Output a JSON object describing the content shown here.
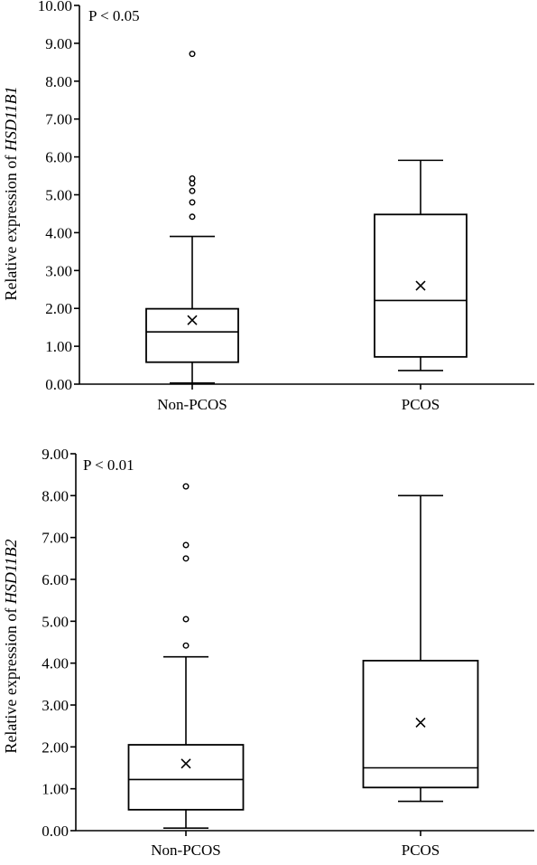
{
  "chart_data": [
    {
      "type": "box",
      "annotation": "P < 0.05",
      "ylabel": {
        "prefix": "Relative expression of ",
        "gene": "HSD11B1"
      },
      "ylim": [
        0,
        10
      ],
      "yticks": [
        "0.00",
        "1.00",
        "2.00",
        "3.00",
        "4.00",
        "5.00",
        "6.00",
        "7.00",
        "8.00",
        "9.00",
        "10.00"
      ],
      "categories": [
        "Non-PCOS",
        "PCOS"
      ],
      "boxes": [
        {
          "category": "Non-PCOS",
          "whisker_low": 0.03,
          "q1": 0.58,
          "median": 1.38,
          "q3": 1.99,
          "whisker_high": 3.9,
          "mean": 1.69,
          "outliers": [
            4.42,
            4.8,
            5.1,
            5.3,
            5.43,
            8.72
          ]
        },
        {
          "category": "PCOS",
          "whisker_low": 0.36,
          "q1": 0.72,
          "median": 2.21,
          "q3": 4.48,
          "whisker_high": 5.91,
          "mean": 2.6,
          "outliers": []
        }
      ]
    },
    {
      "type": "box",
      "annotation": "P < 0.01",
      "ylabel": {
        "prefix": "Relative expression of ",
        "gene": "HSD11B2"
      },
      "ylim": [
        0,
        9
      ],
      "yticks": [
        "0.00",
        "1.00",
        "2.00",
        "3.00",
        "4.00",
        "5.00",
        "6.00",
        "7.00",
        "8.00",
        "9.00"
      ],
      "categories": [
        "Non-PCOS",
        "PCOS"
      ],
      "boxes": [
        {
          "category": "Non-PCOS",
          "whisker_low": 0.06,
          "q1": 0.5,
          "median": 1.22,
          "q3": 2.05,
          "whisker_high": 4.15,
          "mean": 1.6,
          "outliers": [
            4.42,
            5.05,
            6.5,
            6.82,
            8.22
          ]
        },
        {
          "category": "PCOS",
          "whisker_low": 0.7,
          "q1": 1.03,
          "median": 1.5,
          "q3": 4.06,
          "whisker_high": 8.0,
          "mean": 2.58,
          "outliers": []
        }
      ]
    }
  ]
}
